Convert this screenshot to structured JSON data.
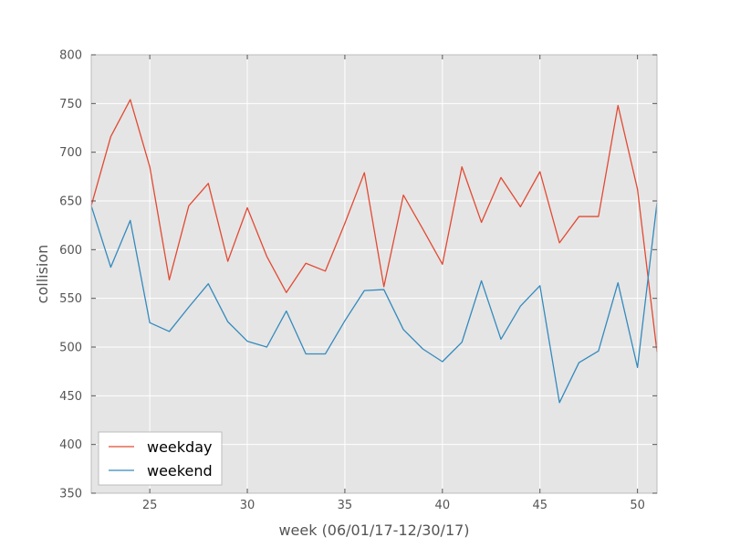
{
  "chart_data": {
    "type": "line",
    "xlabel": "week (06/01/17-12/30/17)",
    "ylabel": "collision",
    "xlim": [
      22,
      51
    ],
    "ylim": [
      350,
      800
    ],
    "xticks": [
      25,
      30,
      35,
      40,
      45,
      50
    ],
    "yticks": [
      350,
      400,
      450,
      500,
      550,
      600,
      650,
      700,
      750,
      800
    ],
    "grid": true,
    "legend_position": "lower-left",
    "x": [
      22,
      23,
      24,
      25,
      26,
      27,
      28,
      29,
      30,
      31,
      32,
      33,
      34,
      35,
      36,
      37,
      38,
      39,
      40,
      41,
      42,
      43,
      44,
      45,
      46,
      47,
      48,
      49,
      50,
      51
    ],
    "series": [
      {
        "name": "weekday",
        "color": "#E24A33",
        "values": [
          645,
          716,
          754,
          685,
          569,
          645,
          668,
          588,
          643,
          593,
          556,
          586,
          578,
          627,
          679,
          562,
          656,
          621,
          585,
          685,
          628,
          674,
          644,
          680,
          607,
          634,
          634,
          748,
          662,
          495
        ]
      },
      {
        "name": "weekend",
        "color": "#348ABD",
        "values": [
          645,
          582,
          630,
          525,
          516,
          541,
          565,
          526,
          506,
          500,
          537,
          493,
          493,
          527,
          558,
          559,
          518,
          498,
          485,
          505,
          568,
          508,
          542,
          563,
          443,
          484,
          496,
          566,
          479,
          648
        ]
      }
    ]
  }
}
